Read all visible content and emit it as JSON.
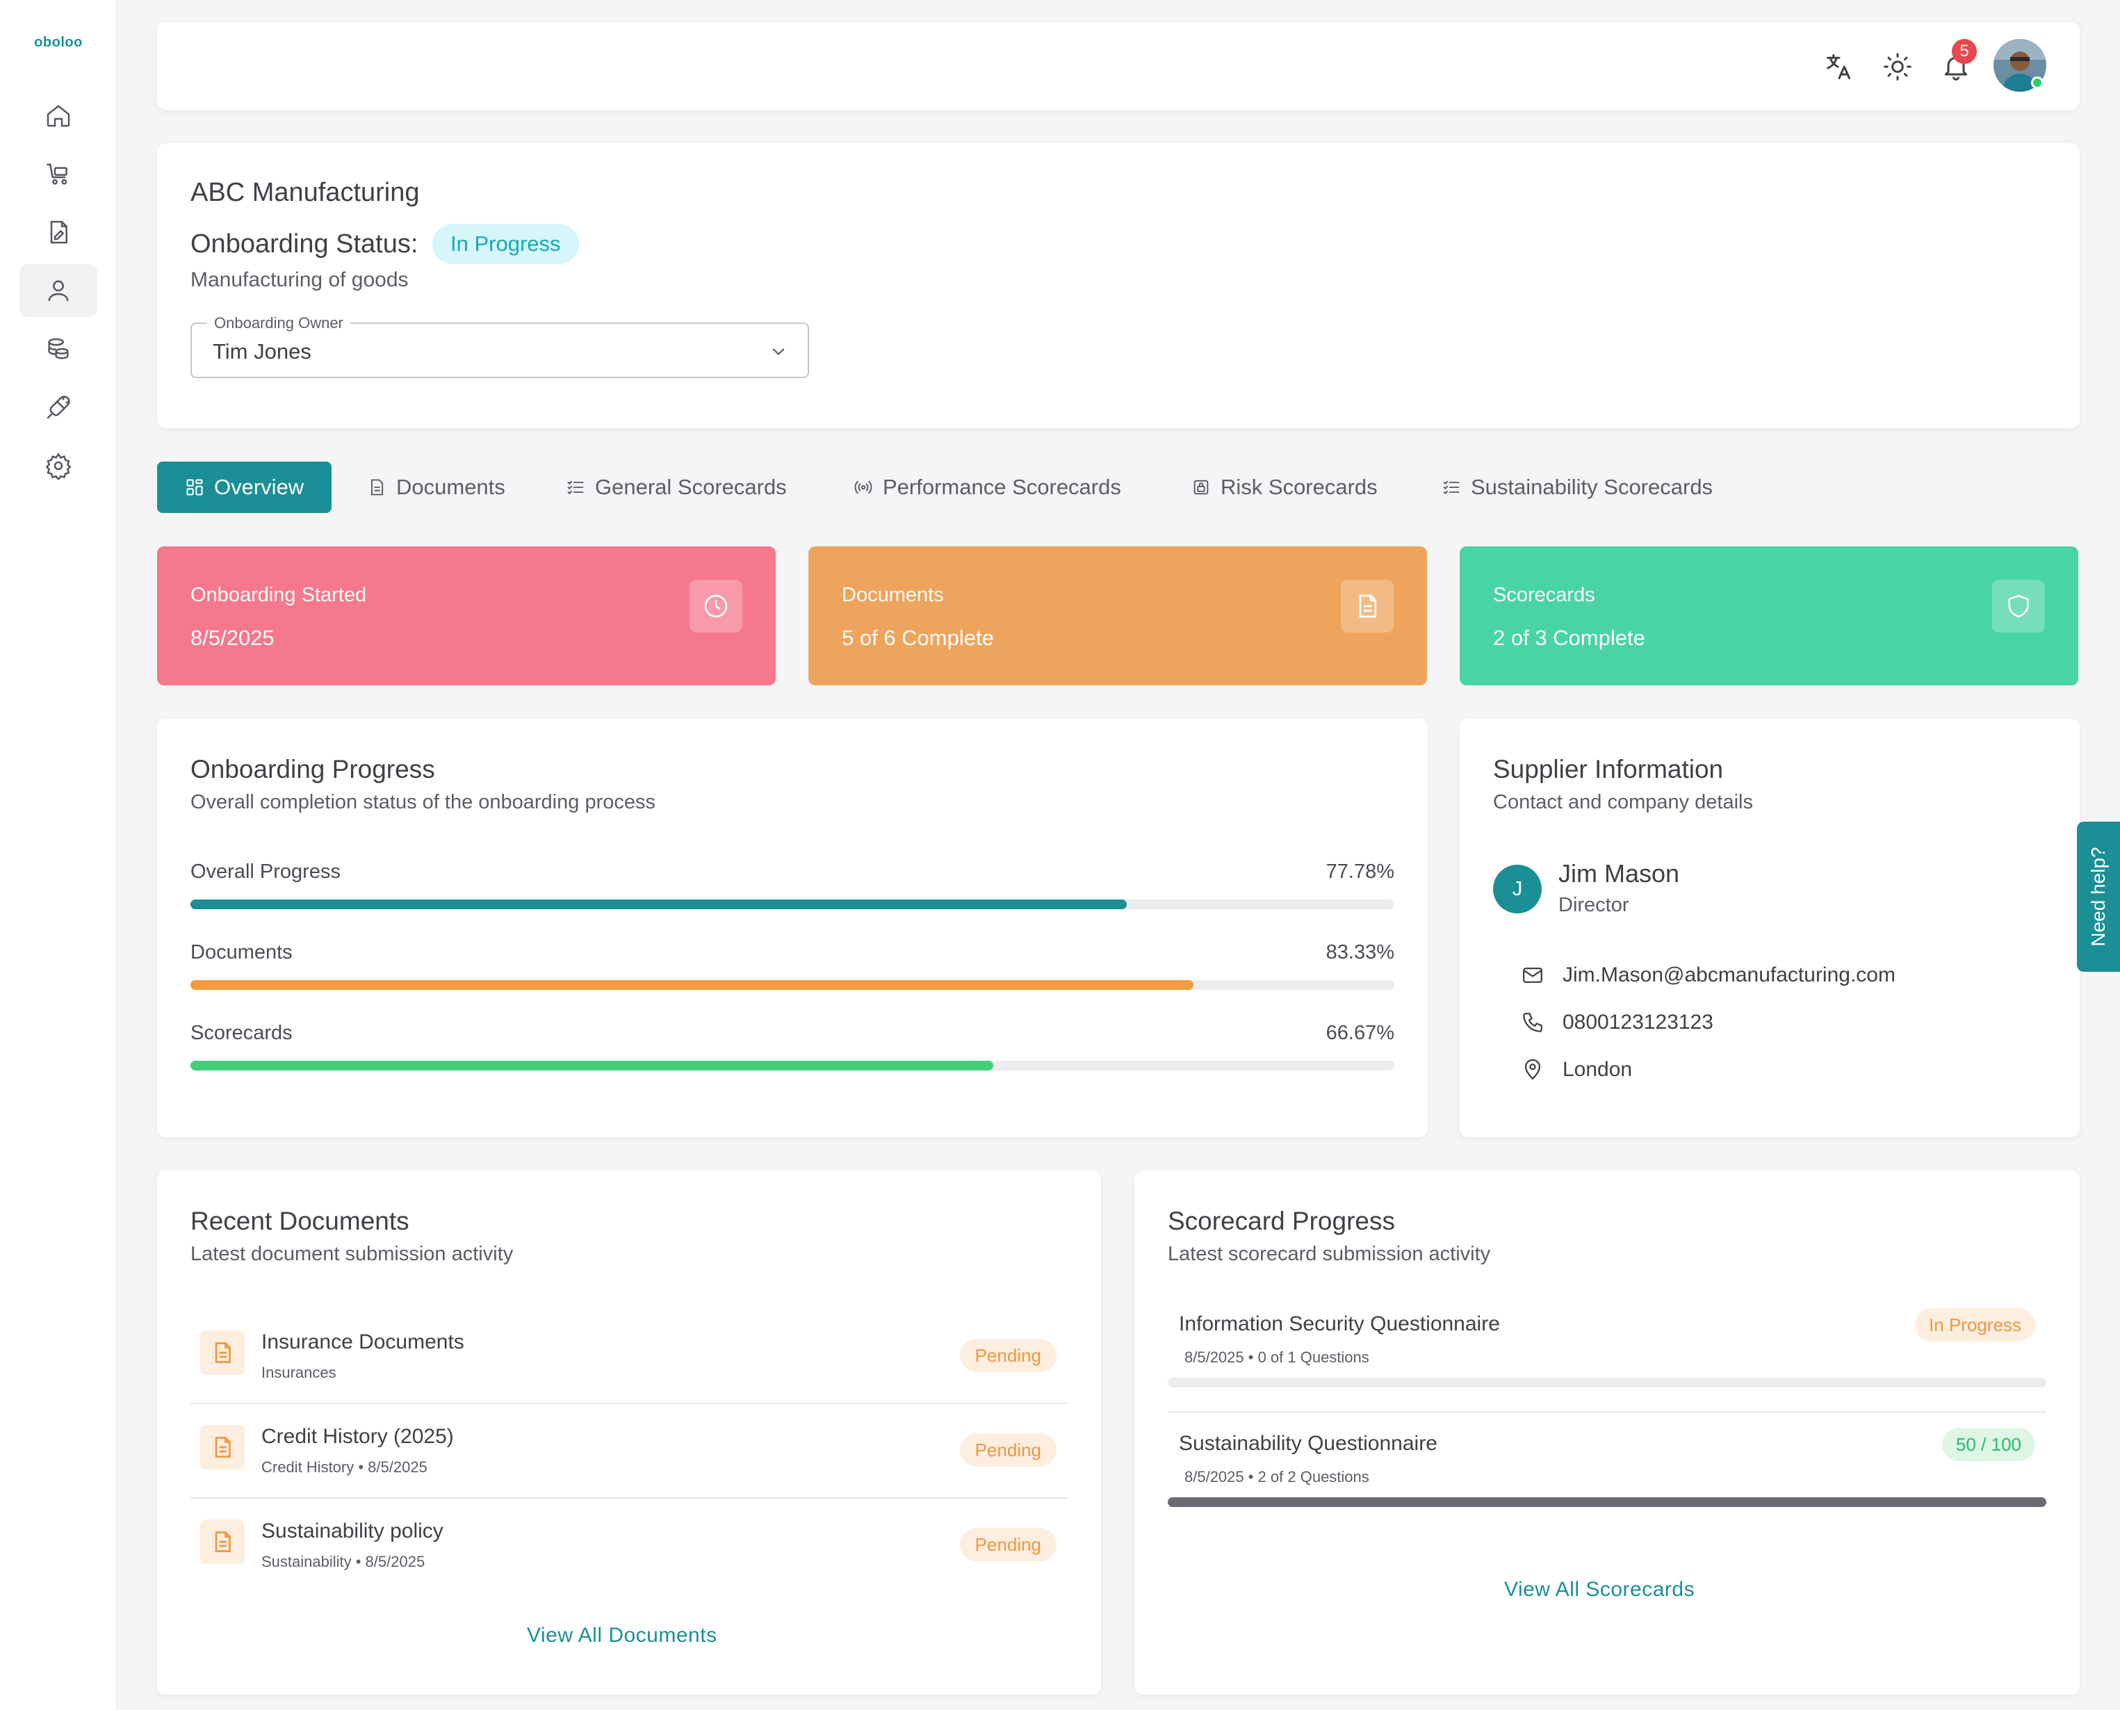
{
  "app": {
    "logo": "oboloo"
  },
  "sidebar": {
    "items": [
      {
        "name": "home-icon"
      },
      {
        "name": "cart-icon"
      },
      {
        "name": "contract-icon"
      },
      {
        "name": "user-icon",
        "active": true
      },
      {
        "name": "coins-icon"
      },
      {
        "name": "plug-icon"
      },
      {
        "name": "settings-icon"
      }
    ]
  },
  "topbar": {
    "notification_count": "5",
    "icons": [
      "translate-icon",
      "sun-icon",
      "bell-icon",
      "avatar"
    ]
  },
  "header": {
    "company": "ABC Manufacturing",
    "status_label": "Onboarding Status:",
    "status": "In Progress",
    "industry": "Manufacturing of goods",
    "owner_label": "Onboarding Owner",
    "owner_value": "Tim Jones"
  },
  "tabs": [
    {
      "label": "Overview",
      "active": true
    },
    {
      "label": "Documents"
    },
    {
      "label": "General Scorecards"
    },
    {
      "label": "Performance Scorecards"
    },
    {
      "label": "Risk Scorecards"
    },
    {
      "label": "Sustainability Scorecards"
    }
  ],
  "stats": [
    {
      "title": "Onboarding Started",
      "value": "8/5/2025",
      "color": "#f5788d",
      "icon": "clock-icon"
    },
    {
      "title": "Documents",
      "value": "5 of 6 Complete",
      "color": "#eea45c",
      "icon": "document-icon"
    },
    {
      "title": "Scorecards",
      "value": "2 of 3 Complete",
      "color": "#49d4a3",
      "icon": "shield-icon"
    }
  ],
  "progress": {
    "title": "Onboarding Progress",
    "subtitle": "Overall completion status of the onboarding process",
    "items": [
      {
        "label": "Overall Progress",
        "pct": "77.78%",
        "value": 77.78,
        "color": "#1b8f96"
      },
      {
        "label": "Documents",
        "pct": "83.33%",
        "value": 83.33,
        "color": "#f59a3e"
      },
      {
        "label": "Scorecards",
        "pct": "66.67%",
        "value": 66.67,
        "color": "#45cf78"
      }
    ]
  },
  "supplier": {
    "title": "Supplier Information",
    "subtitle": "Contact and company details",
    "initial": "J",
    "name": "Jim Mason",
    "role": "Director",
    "email": "Jim.Mason@abcmanufacturing.com",
    "phone": "0800123123123",
    "location": "London"
  },
  "help": {
    "label": "Need help?"
  },
  "documents": {
    "title": "Recent Documents",
    "subtitle": "Latest document submission activity",
    "items": [
      {
        "name": "Insurance Documents",
        "meta": "Insurances",
        "status": "Pending"
      },
      {
        "name": "Credit History (2025)",
        "meta": "Credit History • 8/5/2025",
        "status": "Pending"
      },
      {
        "name": "Sustainability policy",
        "meta": "Sustainability • 8/5/2025",
        "status": "Pending"
      }
    ],
    "view_all": "View All Documents"
  },
  "scorecards": {
    "title": "Scorecard Progress",
    "subtitle": "Latest scorecard submission activity",
    "items": [
      {
        "name": "Information Security Questionnaire",
        "meta": "8/5/2025 • 0 of 1 Questions",
        "chip": "In Progress",
        "progress": 0,
        "chip_color": "#f0973d",
        "chip_bg": "#fdeee0"
      },
      {
        "name": "Sustainability Questionnaire",
        "meta": "8/5/2025 • 2 of 2 Questions",
        "chip": "50 / 100",
        "progress": 100,
        "chip_color": "#2fb86a",
        "chip_bg": "#ddf6e6"
      }
    ],
    "view_all": "View All Scorecards"
  }
}
